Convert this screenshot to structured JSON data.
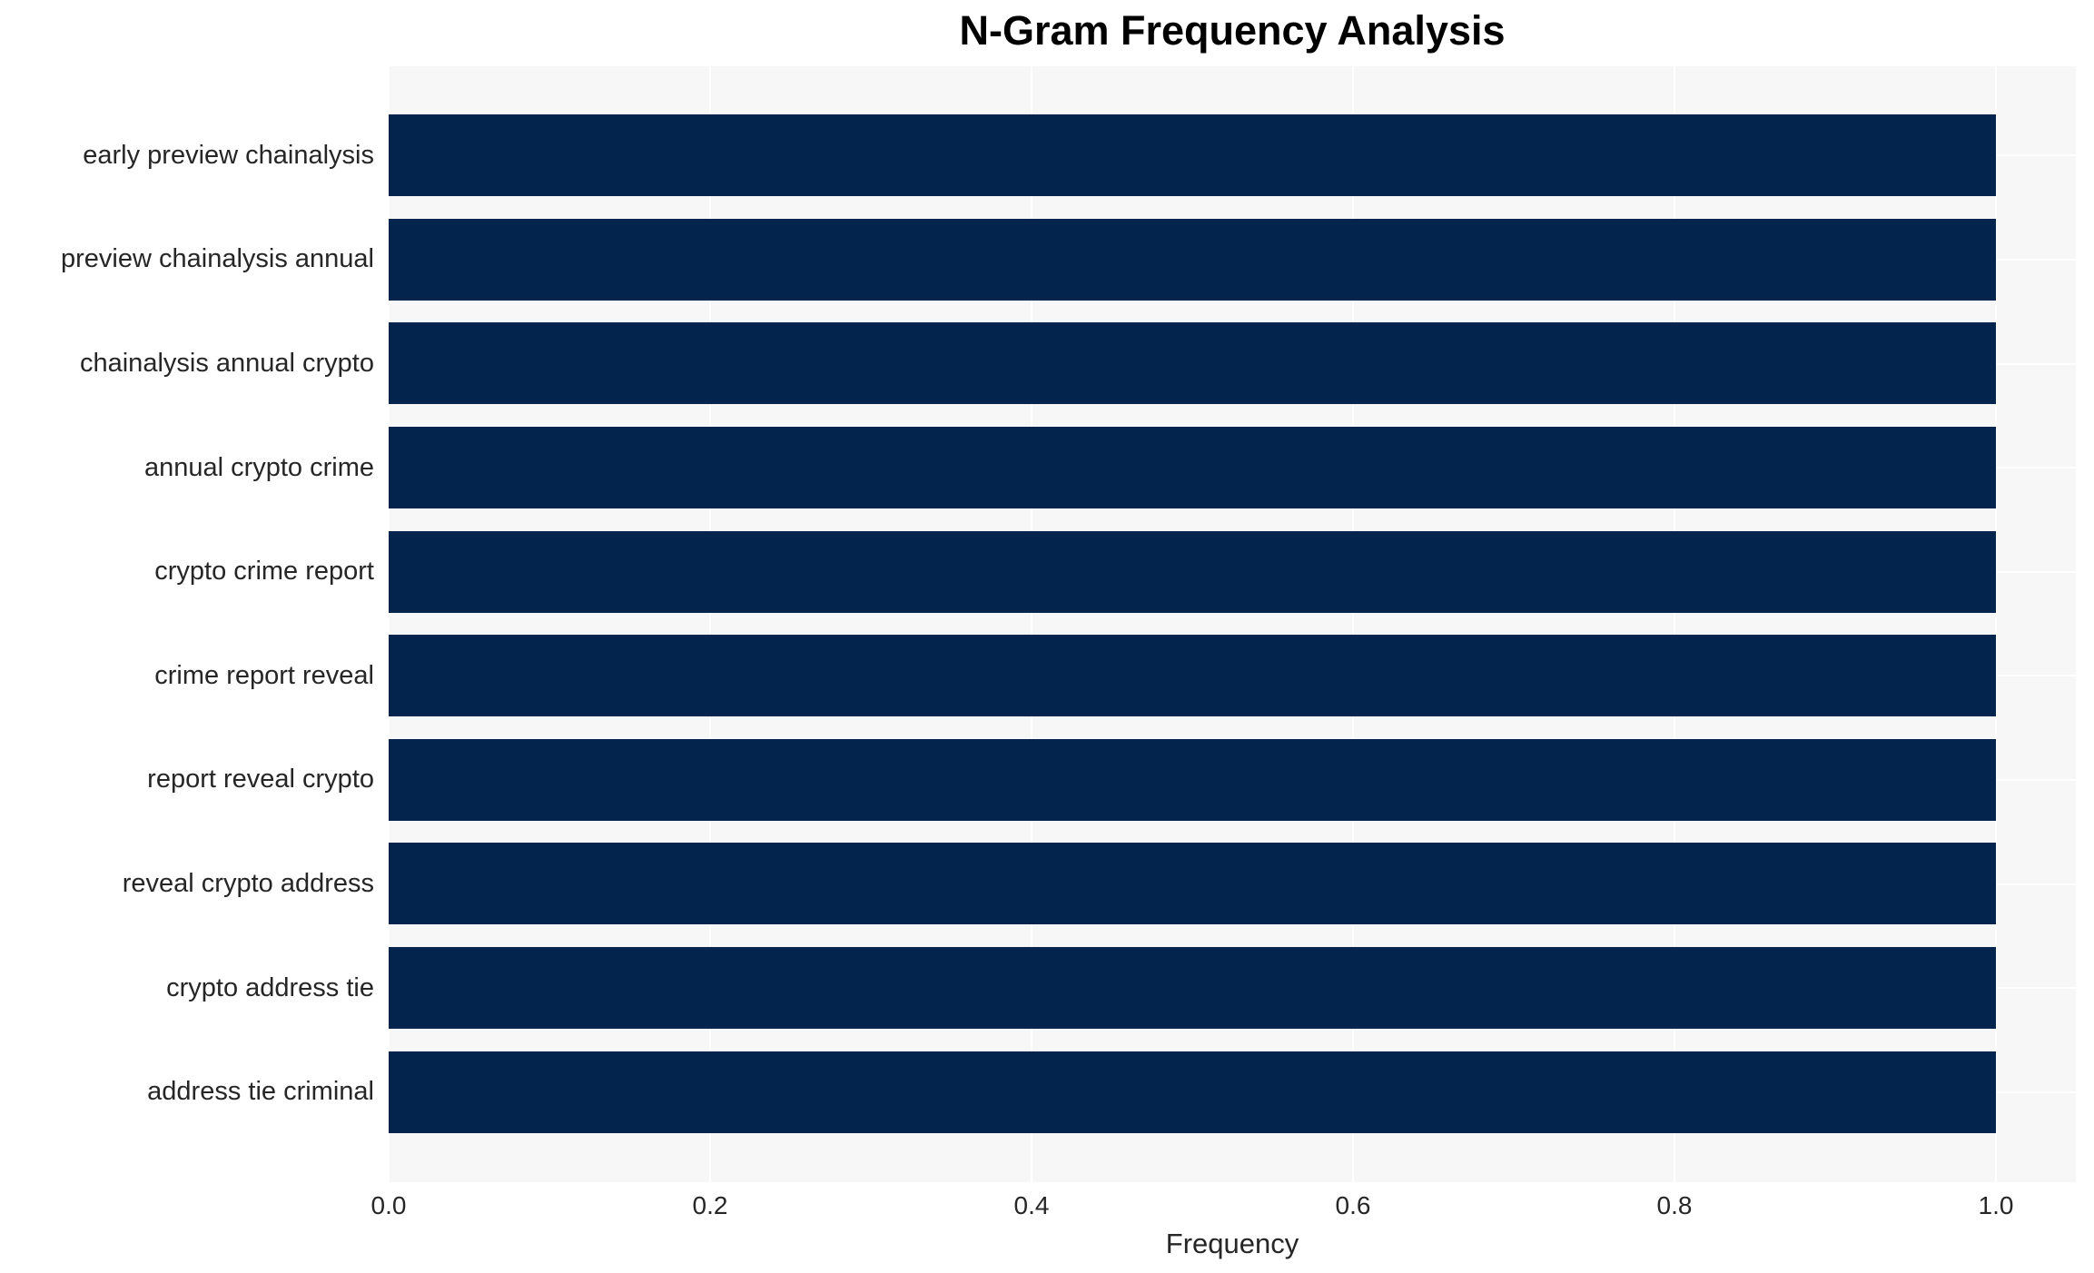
{
  "chart_data": {
    "type": "bar",
    "orientation": "horizontal",
    "title": "N-Gram Frequency Analysis",
    "xlabel": "Frequency",
    "ylabel": "",
    "categories": [
      "early preview chainalysis",
      "preview chainalysis annual",
      "chainalysis annual crypto",
      "annual crypto crime",
      "crypto crime report",
      "crime report reveal",
      "report reveal crypto",
      "reveal crypto address",
      "crypto address tie",
      "address tie criminal"
    ],
    "values": [
      1.0,
      1.0,
      1.0,
      1.0,
      1.0,
      1.0,
      1.0,
      1.0,
      1.0,
      1.0
    ],
    "x_ticks": [
      "0.0",
      "0.2",
      "0.4",
      "0.6",
      "0.8",
      "1.0"
    ],
    "x_tick_values": [
      0.0,
      0.2,
      0.4,
      0.6,
      0.8,
      1.0
    ],
    "xlim": [
      0,
      1.05
    ],
    "grid": true,
    "legend_visible": false,
    "colors": {
      "bar": "#03254d",
      "plot_background": "#f7f7f7",
      "figure_background": "#ffffff",
      "gridline": "#ffffff",
      "title_text": "#000000",
      "tick_text": "#262626"
    }
  }
}
